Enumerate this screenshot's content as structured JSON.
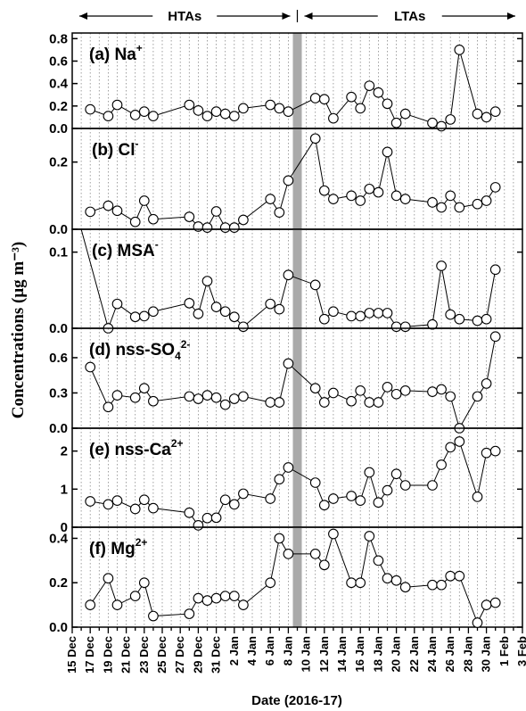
{
  "chart_data": {
    "type": "scatter",
    "xlabel": "Date (2016-17)",
    "ylabel": "Concentrations (μg m⁻³)",
    "x_tick_labels": [
      "15 Dec",
      "17 Dec",
      "19 Dec",
      "21 Dec",
      "23 Dec",
      "25 Dec",
      "27 Dec",
      "29 Dec",
      "31 Dec",
      "2 Jan",
      "4 Jan",
      "6 Jan",
      "8 Jan",
      "10 Jan",
      "12 Jan",
      "14 Jan",
      "16 Jan",
      "18 Jan",
      "20 Jan",
      "22 Jan",
      "24 Jan",
      "26 Jan",
      "28 Jan",
      "30 Jan",
      "1 Feb",
      "3 Feb"
    ],
    "periods": [
      {
        "label": "HTAs",
        "from": "2016-12-15",
        "to": "2017-01-09"
      },
      {
        "label": "LTAs",
        "from": "2017-01-09",
        "to": "2017-02-03"
      }
    ],
    "separator_date": "2017-01-09",
    "panels": [
      {
        "label": "(a) Na",
        "label_sup": "+",
        "ylim": [
          0,
          0.85
        ],
        "yticks": [
          0.0,
          0.2,
          0.4,
          0.6,
          0.8
        ],
        "ytick_labels": [
          "0.0",
          "0.2",
          "0.4",
          "0.6",
          "0.8"
        ],
        "points": [
          [
            "2016-12-17",
            0.17
          ],
          [
            "2016-12-19",
            0.11
          ],
          [
            "2016-12-20",
            0.21
          ],
          [
            "2016-12-22",
            0.12
          ],
          [
            "2016-12-23",
            0.15
          ],
          [
            "2016-12-24",
            0.11
          ],
          [
            "2016-12-28",
            0.21
          ],
          [
            "2016-12-29",
            0.16
          ],
          [
            "2016-12-30",
            0.11
          ],
          [
            "2016-12-31",
            0.15
          ],
          [
            "2017-01-01",
            0.13
          ],
          [
            "2017-01-02",
            0.11
          ],
          [
            "2017-01-03",
            0.18
          ],
          [
            "2017-01-06",
            0.21
          ],
          [
            "2017-01-07",
            0.18
          ],
          [
            "2017-01-08",
            0.15
          ],
          [
            "2017-01-11",
            0.27
          ],
          [
            "2017-01-12",
            0.26
          ],
          [
            "2017-01-13",
            0.09
          ],
          [
            "2017-01-15",
            0.28
          ],
          [
            "2017-01-16",
            0.18
          ],
          [
            "2017-01-17",
            0.38
          ],
          [
            "2017-01-18",
            0.32
          ],
          [
            "2017-01-19",
            0.22
          ],
          [
            "2017-01-20",
            0.05
          ],
          [
            "2017-01-21",
            0.13
          ],
          [
            "2017-01-24",
            0.05
          ],
          [
            "2017-01-25",
            0.02
          ],
          [
            "2017-01-26",
            0.08
          ],
          [
            "2017-01-27",
            0.7
          ],
          [
            "2017-01-29",
            0.13
          ],
          [
            "2017-01-30",
            0.1
          ],
          [
            "2017-01-31",
            0.15
          ]
        ]
      },
      {
        "label": "(b) Cl",
        "label_sup": "-",
        "ylim": [
          0,
          0.3
        ],
        "yticks": [
          0.0,
          0.2
        ],
        "ytick_labels": [
          "0.0",
          "0.2"
        ],
        "points": [
          [
            "2016-12-17",
            0.052
          ],
          [
            "2016-12-19",
            0.07
          ],
          [
            "2016-12-20",
            0.055
          ],
          [
            "2016-12-22",
            0.022
          ],
          [
            "2016-12-23",
            0.085
          ],
          [
            "2016-12-24",
            0.03
          ],
          [
            "2016-12-28",
            0.037
          ],
          [
            "2016-12-29",
            0.008
          ],
          [
            "2016-12-30",
            0.005
          ],
          [
            "2016-12-31",
            0.053
          ],
          [
            "2017-01-01",
            0.005
          ],
          [
            "2017-01-02",
            0.005
          ],
          [
            "2017-01-03",
            0.028
          ],
          [
            "2017-01-06",
            0.09
          ],
          [
            "2017-01-07",
            0.05
          ],
          [
            "2017-01-08",
            0.145
          ],
          [
            "2017-01-11",
            0.27
          ],
          [
            "2017-01-12",
            0.115
          ],
          [
            "2017-01-13",
            0.09
          ],
          [
            "2017-01-15",
            0.1
          ],
          [
            "2017-01-16",
            0.085
          ],
          [
            "2017-01-17",
            0.12
          ],
          [
            "2017-01-18",
            0.11
          ],
          [
            "2017-01-19",
            0.23
          ],
          [
            "2017-01-20",
            0.1
          ],
          [
            "2017-01-21",
            0.09
          ],
          [
            "2017-01-24",
            0.08
          ],
          [
            "2017-01-25",
            0.065
          ],
          [
            "2017-01-26",
            0.1
          ],
          [
            "2017-01-27",
            0.065
          ],
          [
            "2017-01-29",
            0.075
          ],
          [
            "2017-01-30",
            0.085
          ],
          [
            "2017-01-31",
            0.125
          ]
        ]
      },
      {
        "label": "(c) MSA",
        "label_sup": "-",
        "ylim": [
          0,
          0.13
        ],
        "yticks": [
          0.0,
          0.1
        ],
        "ytick_labels": [
          "0.0",
          "0.1"
        ],
        "points": [
          [
            "2016-12-19",
            0.0
          ],
          [
            "2016-12-20",
            0.032
          ],
          [
            "2016-12-22",
            0.015
          ],
          [
            "2016-12-23",
            0.016
          ],
          [
            "2016-12-24",
            0.022
          ],
          [
            "2016-12-28",
            0.033
          ],
          [
            "2016-12-29",
            0.019
          ],
          [
            "2016-12-30",
            0.062
          ],
          [
            "2016-12-31",
            0.028
          ],
          [
            "2017-01-01",
            0.022
          ],
          [
            "2017-01-02",
            0.015
          ],
          [
            "2017-01-03",
            0.002
          ],
          [
            "2017-01-06",
            0.032
          ],
          [
            "2017-01-07",
            0.025
          ],
          [
            "2017-01-08",
            0.07
          ],
          [
            "2017-01-11",
            0.057
          ],
          [
            "2017-01-12",
            0.012
          ],
          [
            "2017-01-13",
            0.022
          ],
          [
            "2017-01-15",
            0.016
          ],
          [
            "2017-01-16",
            0.016
          ],
          [
            "2017-01-17",
            0.02
          ],
          [
            "2017-01-18",
            0.02
          ],
          [
            "2017-01-19",
            0.02
          ],
          [
            "2017-01-20",
            0.002
          ],
          [
            "2017-01-21",
            0.002
          ],
          [
            "2017-01-24",
            0.005
          ],
          [
            "2017-01-25",
            0.082
          ],
          [
            "2017-01-26",
            0.018
          ],
          [
            "2017-01-27",
            0.012
          ],
          [
            "2017-01-29",
            0.01
          ],
          [
            "2017-01-30",
            0.012
          ],
          [
            "2017-01-31",
            0.077
          ]
        ],
        "start_line_from": [
          "2016-12-16",
          0.13
        ]
      },
      {
        "label": "(d) nss-SO",
        "label_sub": "4",
        "label_sup": "2-",
        "ylim": [
          0,
          0.85
        ],
        "yticks": [
          0.0,
          0.3,
          0.6
        ],
        "ytick_labels": [
          "0.0",
          "0.3",
          "0.6"
        ],
        "points": [
          [
            "2016-12-17",
            0.52
          ],
          [
            "2016-12-19",
            0.18
          ],
          [
            "2016-12-20",
            0.28
          ],
          [
            "2016-12-22",
            0.26
          ],
          [
            "2016-12-23",
            0.34
          ],
          [
            "2016-12-24",
            0.23
          ],
          [
            "2016-12-28",
            0.27
          ],
          [
            "2016-12-29",
            0.25
          ],
          [
            "2016-12-30",
            0.28
          ],
          [
            "2016-12-31",
            0.26
          ],
          [
            "2017-01-01",
            0.2
          ],
          [
            "2017-01-02",
            0.25
          ],
          [
            "2017-01-03",
            0.27
          ],
          [
            "2017-01-06",
            0.22
          ],
          [
            "2017-01-07",
            0.22
          ],
          [
            "2017-01-08",
            0.55
          ],
          [
            "2017-01-11",
            0.34
          ],
          [
            "2017-01-12",
            0.22
          ],
          [
            "2017-01-13",
            0.3
          ],
          [
            "2017-01-15",
            0.23
          ],
          [
            "2017-01-16",
            0.32
          ],
          [
            "2017-01-17",
            0.22
          ],
          [
            "2017-01-18",
            0.22
          ],
          [
            "2017-01-19",
            0.35
          ],
          [
            "2017-01-20",
            0.29
          ],
          [
            "2017-01-21",
            0.32
          ],
          [
            "2017-01-24",
            0.31
          ],
          [
            "2017-01-25",
            0.33
          ],
          [
            "2017-01-26",
            0.27
          ],
          [
            "2017-01-27",
            0.0
          ],
          [
            "2017-01-29",
            0.27
          ],
          [
            "2017-01-30",
            0.38
          ],
          [
            "2017-01-31",
            0.78
          ]
        ]
      },
      {
        "label": "(e) nss-Ca",
        "label_sup": "2+",
        "ylim": [
          0,
          2.6
        ],
        "yticks": [
          0,
          1,
          2
        ],
        "ytick_labels": [
          "0",
          "1",
          "2"
        ],
        "points": [
          [
            "2016-12-17",
            0.68
          ],
          [
            "2016-12-19",
            0.6
          ],
          [
            "2016-12-20",
            0.7
          ],
          [
            "2016-12-22",
            0.48
          ],
          [
            "2016-12-23",
            0.72
          ],
          [
            "2016-12-24",
            0.5
          ],
          [
            "2016-12-28",
            0.38
          ],
          [
            "2016-12-29",
            0.05
          ],
          [
            "2016-12-30",
            0.24
          ],
          [
            "2016-12-31",
            0.25
          ],
          [
            "2017-01-01",
            0.72
          ],
          [
            "2017-01-02",
            0.6
          ],
          [
            "2017-01-03",
            0.88
          ],
          [
            "2017-01-06",
            0.75
          ],
          [
            "2017-01-07",
            1.26
          ],
          [
            "2017-01-08",
            1.57
          ],
          [
            "2017-01-11",
            1.17
          ],
          [
            "2017-01-12",
            0.58
          ],
          [
            "2017-01-13",
            0.75
          ],
          [
            "2017-01-15",
            0.82
          ],
          [
            "2017-01-16",
            0.7
          ],
          [
            "2017-01-17",
            1.44
          ],
          [
            "2017-01-18",
            0.65
          ],
          [
            "2017-01-19",
            0.97
          ],
          [
            "2017-01-20",
            1.4
          ],
          [
            "2017-01-21",
            1.1
          ],
          [
            "2017-01-24",
            1.1
          ],
          [
            "2017-01-25",
            1.64
          ],
          [
            "2017-01-26",
            2.1
          ],
          [
            "2017-01-27",
            2.25
          ],
          [
            "2017-01-29",
            0.8
          ],
          [
            "2017-01-30",
            1.95
          ],
          [
            "2017-01-31",
            2.0
          ]
        ]
      },
      {
        "label": "(f) Mg",
        "label_sup": "2+",
        "ylim": [
          0,
          0.45
        ],
        "yticks": [
          0.0,
          0.2,
          0.4
        ],
        "ytick_labels": [
          "0.0",
          "0.2",
          "0.4"
        ],
        "points": [
          [
            "2016-12-17",
            0.1
          ],
          [
            "2016-12-19",
            0.22
          ],
          [
            "2016-12-20",
            0.1
          ],
          [
            "2016-12-22",
            0.14
          ],
          [
            "2016-12-23",
            0.2
          ],
          [
            "2016-12-24",
            0.05
          ],
          [
            "2016-12-28",
            0.06
          ],
          [
            "2016-12-29",
            0.13
          ],
          [
            "2016-12-30",
            0.12
          ],
          [
            "2016-12-31",
            0.13
          ],
          [
            "2017-01-01",
            0.14
          ],
          [
            "2017-01-02",
            0.14
          ],
          [
            "2017-01-03",
            0.1
          ],
          [
            "2017-01-06",
            0.2
          ],
          [
            "2017-01-07",
            0.4
          ],
          [
            "2017-01-08",
            0.33
          ],
          [
            "2017-01-11",
            0.33
          ],
          [
            "2017-01-12",
            0.28
          ],
          [
            "2017-01-13",
            0.42
          ],
          [
            "2017-01-15",
            0.2
          ],
          [
            "2017-01-16",
            0.2
          ],
          [
            "2017-01-17",
            0.41
          ],
          [
            "2017-01-18",
            0.3
          ],
          [
            "2017-01-19",
            0.22
          ],
          [
            "2017-01-20",
            0.21
          ],
          [
            "2017-01-21",
            0.18
          ],
          [
            "2017-01-24",
            0.19
          ],
          [
            "2017-01-25",
            0.19
          ],
          [
            "2017-01-26",
            0.23
          ],
          [
            "2017-01-27",
            0.23
          ],
          [
            "2017-01-29",
            0.02
          ],
          [
            "2017-01-30",
            0.1
          ],
          [
            "2017-01-31",
            0.11
          ]
        ]
      }
    ]
  }
}
